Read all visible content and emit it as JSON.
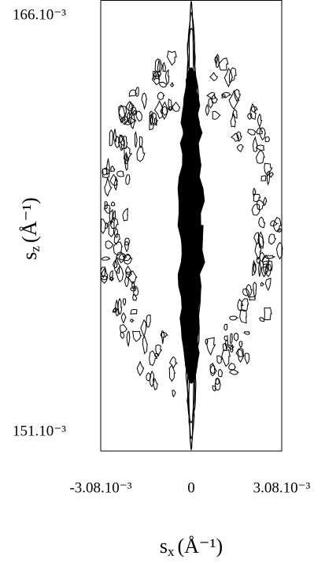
{
  "chart_data": {
    "type": "contour",
    "x_label": {
      "symbol": "s",
      "subscript": "x",
      "unit": "(Å⁻¹)"
    },
    "y_label": {
      "symbol": "s",
      "subscript": "z",
      "unit": "(Å⁻¹)"
    },
    "xlim": [
      -0.00308,
      0.00308
    ],
    "xticks": [
      {
        "value": -0.00308,
        "label": "-3.08.10⁻³"
      },
      0,
      {
        "value": 0.00308,
        "label": "3.08.10⁻³"
      }
    ],
    "ylim": [
      0.15032,
      0.16657
    ],
    "yticks": [
      {
        "value": 0.151,
        "label": "151.10⁻³"
      },
      {
        "value": 0.166,
        "label": "166.10⁻³"
      }
    ],
    "color": "#000000"
  }
}
